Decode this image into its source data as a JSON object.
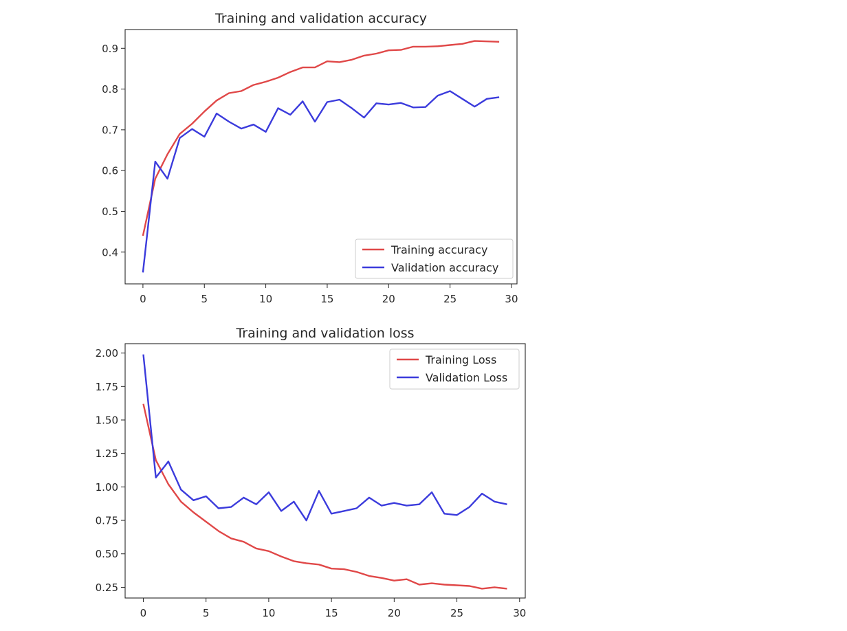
{
  "chart_data": [
    {
      "type": "line",
      "title": "Training and validation accuracy",
      "xlabel": "",
      "ylabel": "",
      "xlim": [
        -1.45,
        30.45
      ],
      "ylim": [
        0.322,
        0.946
      ],
      "xticks": [
        0,
        5,
        10,
        15,
        20,
        25,
        30
      ],
      "yticks": [
        0.4,
        0.5,
        0.6,
        0.7,
        0.8,
        0.9
      ],
      "xtick_labels": [
        "0",
        "5",
        "10",
        "15",
        "20",
        "25",
        "30"
      ],
      "ytick_labels": [
        "0.4",
        "0.5",
        "0.6",
        "0.7",
        "0.8",
        "0.9"
      ],
      "grid": false,
      "legend_position": "lower-right",
      "x": [
        0,
        1,
        2,
        3,
        4,
        5,
        6,
        7,
        8,
        9,
        10,
        11,
        12,
        13,
        14,
        15,
        16,
        17,
        18,
        19,
        20,
        21,
        22,
        23,
        24,
        25,
        26,
        27,
        28,
        29
      ],
      "series": [
        {
          "name": "Training accuracy",
          "color": "#e04848",
          "values": [
            0.44,
            0.58,
            0.64,
            0.69,
            0.715,
            0.745,
            0.772,
            0.79,
            0.795,
            0.81,
            0.818,
            0.828,
            0.842,
            0.853,
            0.853,
            0.868,
            0.866,
            0.872,
            0.882,
            0.887,
            0.895,
            0.896,
            0.904,
            0.904,
            0.905,
            0.908,
            0.911,
            0.918,
            0.917,
            0.916
          ]
        },
        {
          "name": "Validation accuracy",
          "color": "#3b3bdc",
          "values": [
            0.35,
            0.622,
            0.58,
            0.68,
            0.702,
            0.683,
            0.74,
            0.72,
            0.703,
            0.713,
            0.695,
            0.753,
            0.737,
            0.77,
            0.72,
            0.768,
            0.774,
            0.753,
            0.73,
            0.765,
            0.762,
            0.766,
            0.755,
            0.756,
            0.784,
            0.795,
            0.776,
            0.757,
            0.776,
            0.78
          ]
        }
      ]
    },
    {
      "type": "line",
      "title": "Training and validation loss",
      "xlabel": "",
      "ylabel": "",
      "xlim": [
        -1.45,
        30.45
      ],
      "ylim": [
        0.17,
        2.07
      ],
      "xticks": [
        0,
        5,
        10,
        15,
        20,
        25,
        30
      ],
      "yticks": [
        0.25,
        0.5,
        0.75,
        1.0,
        1.25,
        1.5,
        1.75,
        2.0
      ],
      "xtick_labels": [
        "0",
        "5",
        "10",
        "15",
        "20",
        "25",
        "30"
      ],
      "ytick_labels": [
        "0.25",
        "0.50",
        "0.75",
        "1.00",
        "1.25",
        "1.50",
        "1.75",
        "2.00"
      ],
      "grid": false,
      "legend_position": "upper-right",
      "x": [
        0,
        1,
        2,
        3,
        4,
        5,
        6,
        7,
        8,
        9,
        10,
        11,
        12,
        13,
        14,
        15,
        16,
        17,
        18,
        19,
        20,
        21,
        22,
        23,
        24,
        25,
        26,
        27,
        28,
        29
      ],
      "series": [
        {
          "name": "Training Loss",
          "color": "#e04848",
          "values": [
            1.62,
            1.2,
            1.02,
            0.89,
            0.81,
            0.74,
            0.67,
            0.615,
            0.59,
            0.54,
            0.52,
            0.48,
            0.445,
            0.43,
            0.42,
            0.39,
            0.385,
            0.365,
            0.335,
            0.32,
            0.3,
            0.31,
            0.27,
            0.28,
            0.27,
            0.265,
            0.26,
            0.24,
            0.25,
            0.24
          ]
        },
        {
          "name": "Validation Loss",
          "color": "#3b3bdc",
          "values": [
            1.99,
            1.07,
            1.19,
            0.98,
            0.9,
            0.93,
            0.84,
            0.85,
            0.92,
            0.87,
            0.96,
            0.82,
            0.89,
            0.75,
            0.97,
            0.8,
            0.82,
            0.84,
            0.92,
            0.86,
            0.88,
            0.86,
            0.87,
            0.96,
            0.8,
            0.79,
            0.85,
            0.95,
            0.89,
            0.87
          ]
        }
      ]
    }
  ]
}
